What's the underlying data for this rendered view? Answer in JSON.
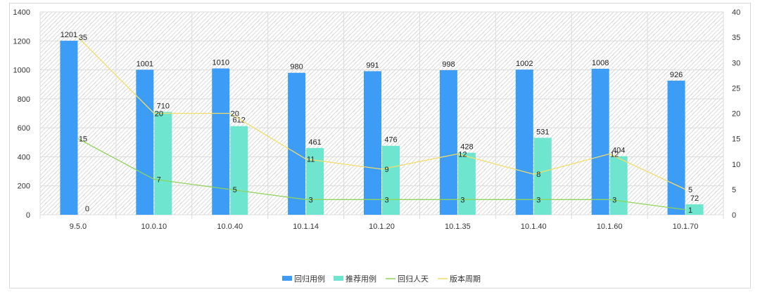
{
  "chart_data": {
    "type": "bar",
    "categories": [
      "9.5.0",
      "10.0.10",
      "10.0.40",
      "10.1.14",
      "10.1.20",
      "10.1.35",
      "10.1.40",
      "10.1.60",
      "10.1.70"
    ],
    "series": [
      {
        "name": "回归用例",
        "kind": "bar",
        "axis": "left",
        "color": "#3d9cf5",
        "values": [
          1201,
          1001,
          1010,
          980,
          991,
          998,
          1002,
          1008,
          926
        ]
      },
      {
        "name": "推荐用例",
        "kind": "bar",
        "axis": "left",
        "color": "#6ee6cf",
        "values": [
          0,
          710,
          612,
          461,
          476,
          428,
          531,
          404,
          72
        ]
      },
      {
        "name": "回归人天",
        "kind": "line",
        "axis": "right",
        "color": "#8fd45a",
        "values": [
          15,
          7,
          5,
          3,
          3,
          3,
          3,
          3,
          1
        ]
      },
      {
        "name": "版本周期",
        "kind": "line",
        "axis": "right",
        "color": "#f3dc6a",
        "values": [
          35,
          20,
          20,
          11,
          9,
          12,
          8,
          12,
          5
        ]
      }
    ],
    "y_left": {
      "min": 0,
      "max": 1400,
      "ticks": [
        "0",
        "200",
        "400",
        "600",
        "800",
        "1000",
        "1200",
        "1400"
      ]
    },
    "y_right": {
      "min": 0,
      "max": 40,
      "ticks": [
        "0",
        "5",
        "10",
        "15",
        "20",
        "25",
        "30",
        "35",
        "40"
      ]
    },
    "grid": true,
    "legend_position": "bottom"
  }
}
